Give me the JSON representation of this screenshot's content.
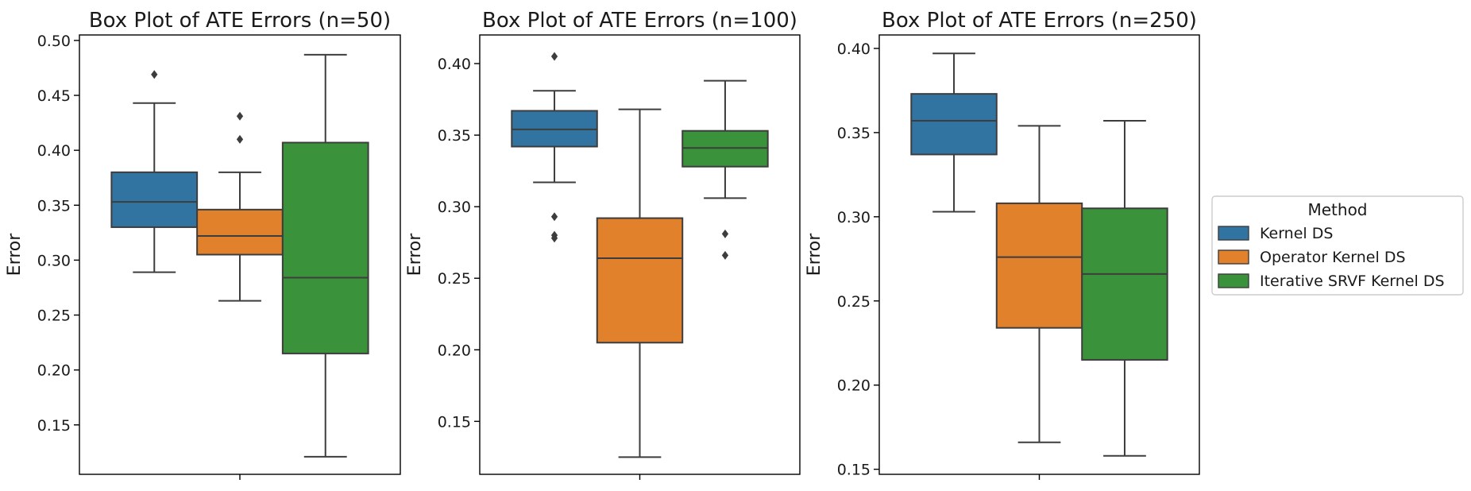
{
  "chart_data": [
    {
      "type": "box",
      "title": "Box Plot of ATE Errors (n=50)",
      "xlabel": "",
      "ylabel": "Error",
      "ylim": [
        0.105,
        0.505
      ],
      "yticks": [
        "0.15",
        "0.20",
        "0.25",
        "0.30",
        "0.35",
        "0.40",
        "0.45",
        "0.50"
      ],
      "series": [
        {
          "name": "Kernel DS",
          "whisker_low": 0.289,
          "q1": 0.33,
          "median": 0.353,
          "q3": 0.38,
          "whisker_high": 0.443,
          "outliers": [
            0.469
          ]
        },
        {
          "name": "Operator Kernel DS",
          "whisker_low": 0.263,
          "q1": 0.305,
          "median": 0.322,
          "q3": 0.346,
          "whisker_high": 0.38,
          "outliers": [
            0.41,
            0.431
          ]
        },
        {
          "name": "Iterative SRVF Kernel DS",
          "whisker_low": 0.121,
          "q1": 0.215,
          "median": 0.284,
          "q3": 0.407,
          "whisker_high": 0.487,
          "outliers": []
        }
      ]
    },
    {
      "type": "box",
      "title": "Box Plot of ATE Errors (n=100)",
      "xlabel": "",
      "ylabel": "Error",
      "ylim": [
        0.113,
        0.42
      ],
      "yticks": [
        "0.15",
        "0.20",
        "0.25",
        "0.30",
        "0.35",
        "0.40"
      ],
      "series": [
        {
          "name": "Kernel DS",
          "whisker_low": 0.317,
          "q1": 0.342,
          "median": 0.354,
          "q3": 0.367,
          "whisker_high": 0.381,
          "outliers": [
            0.28,
            0.278,
            0.293,
            0.405
          ]
        },
        {
          "name": "Operator Kernel DS",
          "whisker_low": 0.125,
          "q1": 0.205,
          "median": 0.264,
          "q3": 0.292,
          "whisker_high": 0.368,
          "outliers": []
        },
        {
          "name": "Iterative SRVF Kernel DS",
          "whisker_low": 0.306,
          "q1": 0.328,
          "median": 0.341,
          "q3": 0.353,
          "whisker_high": 0.388,
          "outliers": [
            0.266,
            0.281
          ]
        }
      ]
    },
    {
      "type": "box",
      "title": "Box Plot of ATE Errors (n=250)",
      "xlabel": "",
      "ylabel": "Error",
      "ylim": [
        0.147,
        0.408
      ],
      "yticks": [
        "0.15",
        "0.20",
        "0.25",
        "0.30",
        "0.35",
        "0.40"
      ],
      "series": [
        {
          "name": "Kernel DS",
          "whisker_low": 0.303,
          "q1": 0.337,
          "median": 0.357,
          "q3": 0.373,
          "whisker_high": 0.397,
          "outliers": []
        },
        {
          "name": "Operator Kernel DS",
          "whisker_low": 0.166,
          "q1": 0.234,
          "median": 0.276,
          "q3": 0.308,
          "whisker_high": 0.354,
          "outliers": []
        },
        {
          "name": "Iterative SRVF Kernel DS",
          "whisker_low": 0.158,
          "q1": 0.215,
          "median": 0.266,
          "q3": 0.305,
          "whisker_high": 0.357,
          "outliers": []
        }
      ]
    }
  ],
  "legend": {
    "title": "Method",
    "entries": [
      {
        "label": "Kernel DS",
        "color": "#3274a1"
      },
      {
        "label": "Operator Kernel DS",
        "color": "#e1812c"
      },
      {
        "label": "Iterative SRVF Kernel DS",
        "color": "#3a923a"
      }
    ]
  },
  "colors": {
    "Kernel DS": "#3274a1",
    "Operator Kernel DS": "#e1812c",
    "Iterative SRVF Kernel DS": "#3a923a",
    "line": "#3d3d3d"
  }
}
